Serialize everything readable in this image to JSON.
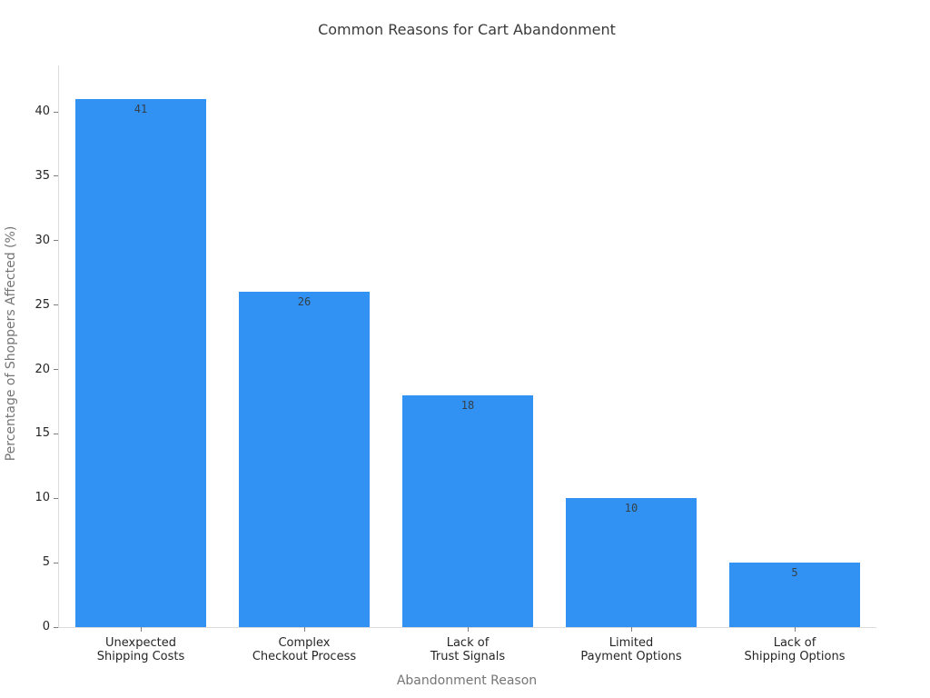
{
  "chart_data": {
    "type": "bar",
    "title": "Common Reasons for Cart Abandonment",
    "xlabel": "Abandonment Reason",
    "ylabel": "Percentage of Shoppers Affected (%)",
    "categories": [
      [
        "Unexpected",
        "Shipping Costs"
      ],
      [
        "Complex",
        "Checkout Process"
      ],
      [
        "Lack of",
        "Trust Signals"
      ],
      [
        "Limited",
        "Payment Options"
      ],
      [
        "Lack of",
        "Shipping Options"
      ]
    ],
    "values": [
      41,
      26,
      18,
      10,
      5
    ],
    "bar_labels": [
      "41",
      "26",
      "18",
      "10",
      "5"
    ],
    "yticks": [
      0,
      5,
      10,
      15,
      20,
      25,
      30,
      35,
      40
    ],
    "ylim": [
      0,
      43.6
    ],
    "grid": false,
    "legend_position": "none",
    "colors": {
      "bar": "#3192f3",
      "bar_label": "#344049",
      "tick_label": "#262626",
      "axis_title": "#757575",
      "spine": "#dcdcdc",
      "tick_mark": "#7f7f7f",
      "title": "#3a3a3a",
      "background": "#ffffff"
    }
  }
}
